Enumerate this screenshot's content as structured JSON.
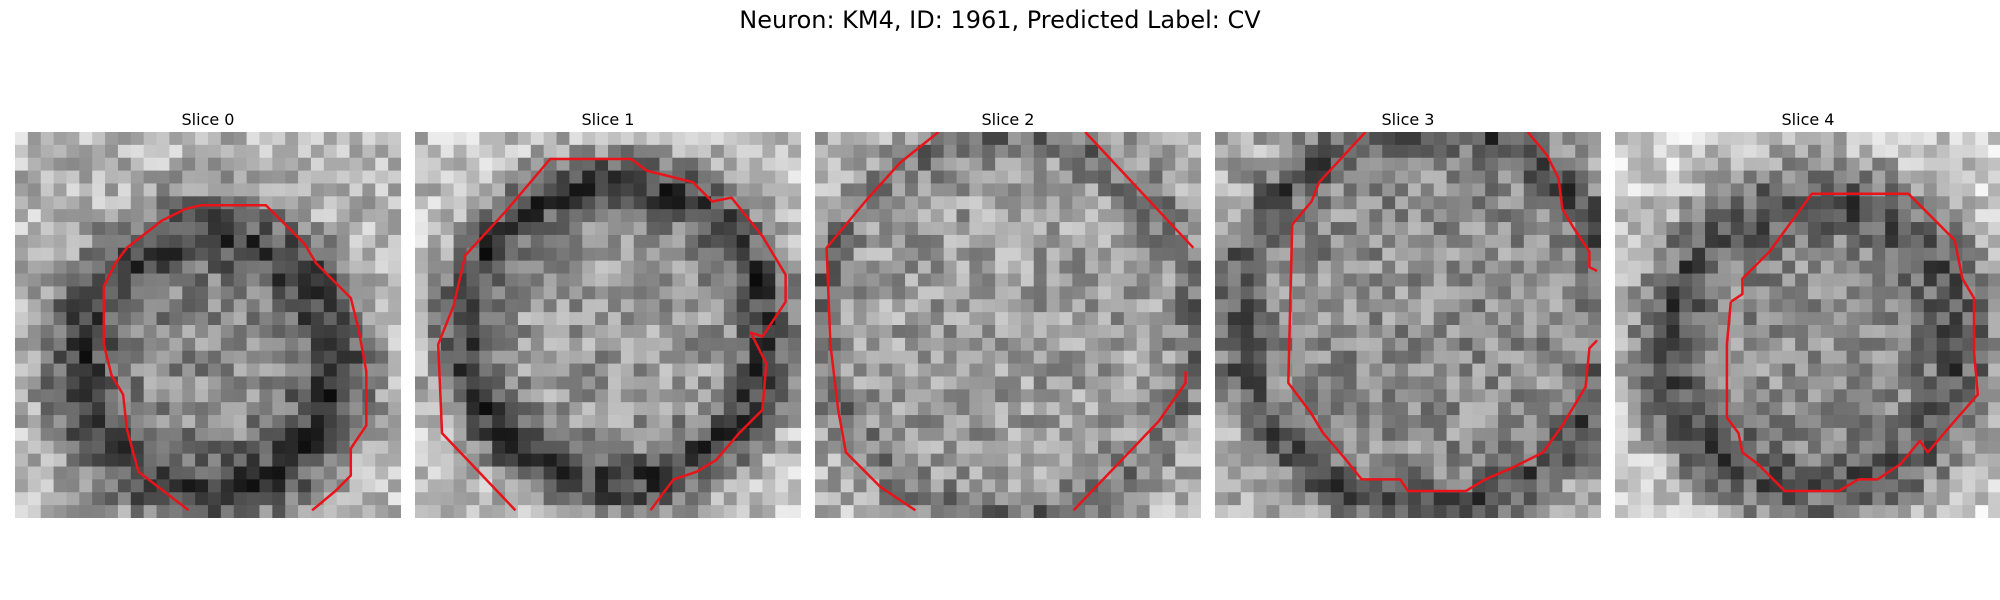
{
  "figure": {
    "title": "Neuron: KM4, ID: 1961, Predicted Label: CV"
  },
  "colors": {
    "contour": "#e8141a",
    "background": "#ffffff"
  },
  "panels": [
    {
      "title": "Slice 0",
      "grid": 30,
      "profile": {
        "center": [
          0.5,
          0.6
        ],
        "radius": 0.34,
        "ring_width": 0.1,
        "ring_darkness": 0.85,
        "inner": 0.55,
        "outer": 0.72
      },
      "contour": [
        [
          [
            0.45,
            0.98
          ],
          [
            0.32,
            0.88
          ],
          [
            0.29,
            0.77
          ],
          [
            0.28,
            0.68
          ],
          [
            0.25,
            0.63
          ],
          [
            0.23,
            0.55
          ],
          [
            0.23,
            0.4
          ],
          [
            0.26,
            0.34
          ],
          [
            0.29,
            0.3
          ],
          [
            0.38,
            0.23
          ],
          [
            0.44,
            0.2
          ],
          [
            0.48,
            0.19
          ],
          [
            0.65,
            0.19
          ],
          [
            0.75,
            0.29
          ],
          [
            0.78,
            0.34
          ],
          [
            0.87,
            0.43
          ],
          [
            0.89,
            0.51
          ],
          [
            0.91,
            0.62
          ],
          [
            0.91,
            0.76
          ],
          [
            0.87,
            0.82
          ],
          [
            0.87,
            0.89
          ],
          [
            0.83,
            0.93
          ],
          [
            0.77,
            0.98
          ]
        ]
      ]
    },
    {
      "title": "Slice 1",
      "grid": 30,
      "profile": {
        "center": [
          0.52,
          0.52
        ],
        "radius": 0.4,
        "ring_width": 0.08,
        "ring_darkness": 0.9,
        "inner": 0.6,
        "outer": 0.75
      },
      "contour": [
        [
          [
            0.26,
            0.98
          ],
          [
            0.07,
            0.78
          ],
          [
            0.06,
            0.55
          ],
          [
            0.1,
            0.45
          ],
          [
            0.13,
            0.32
          ],
          [
            0.24,
            0.2
          ],
          [
            0.35,
            0.07
          ],
          [
            0.56,
            0.07
          ],
          [
            0.6,
            0.1
          ],
          [
            0.72,
            0.13
          ],
          [
            0.77,
            0.18
          ],
          [
            0.82,
            0.17
          ],
          [
            0.9,
            0.27
          ],
          [
            0.96,
            0.37
          ],
          [
            0.96,
            0.44
          ],
          [
            0.9,
            0.53
          ],
          [
            0.87,
            0.52
          ],
          [
            0.91,
            0.6
          ],
          [
            0.9,
            0.72
          ],
          [
            0.84,
            0.78
          ],
          [
            0.78,
            0.85
          ],
          [
            0.73,
            0.88
          ],
          [
            0.67,
            0.9
          ],
          [
            0.64,
            0.94
          ],
          [
            0.61,
            0.98
          ]
        ]
      ]
    },
    {
      "title": "Slice 2",
      "grid": 30,
      "profile": {
        "center": [
          0.5,
          0.5
        ],
        "radius": 0.5,
        "ring_width": 0.06,
        "ring_darkness": 0.45,
        "inner": 0.62,
        "outer": 0.7
      },
      "contour": [
        [
          [
            0.26,
            0.98
          ],
          [
            0.17,
            0.92
          ],
          [
            0.08,
            0.83
          ],
          [
            0.06,
            0.72
          ],
          [
            0.04,
            0.55
          ],
          [
            0.03,
            0.3
          ],
          [
            0.13,
            0.18
          ],
          [
            0.22,
            0.08
          ],
          [
            0.32,
            0.0
          ]
        ],
        [
          [
            0.7,
            0.0
          ],
          [
            0.98,
            0.3
          ]
        ],
        [
          [
            0.67,
            0.98
          ],
          [
            0.89,
            0.75
          ],
          [
            0.96,
            0.65
          ],
          [
            0.96,
            0.62
          ]
        ]
      ]
    },
    {
      "title": "Slice 3",
      "grid": 30,
      "profile": {
        "center": [
          0.55,
          0.48
        ],
        "radius": 0.5,
        "ring_width": 0.06,
        "ring_darkness": 0.7,
        "inner": 0.55,
        "outer": 0.68
      },
      "contour": [
        [
          [
            0.39,
            0.0
          ],
          [
            0.27,
            0.13
          ],
          [
            0.25,
            0.18
          ],
          [
            0.2,
            0.24
          ],
          [
            0.19,
            0.65
          ],
          [
            0.25,
            0.73
          ],
          [
            0.28,
            0.78
          ],
          [
            0.34,
            0.85
          ],
          [
            0.38,
            0.9
          ],
          [
            0.48,
            0.9
          ],
          [
            0.5,
            0.93
          ],
          [
            0.65,
            0.93
          ],
          [
            0.7,
            0.9
          ],
          [
            0.77,
            0.87
          ],
          [
            0.85,
            0.83
          ],
          [
            0.9,
            0.76
          ],
          [
            0.96,
            0.66
          ],
          [
            0.97,
            0.56
          ],
          [
            0.99,
            0.54
          ]
        ],
        [
          [
            0.81,
            0.0
          ],
          [
            0.86,
            0.06
          ],
          [
            0.89,
            0.12
          ],
          [
            0.9,
            0.2
          ],
          [
            0.93,
            0.25
          ],
          [
            0.97,
            0.31
          ],
          [
            0.97,
            0.35
          ],
          [
            0.99,
            0.36
          ]
        ]
      ]
    },
    {
      "title": "Slice 4",
      "grid": 30,
      "profile": {
        "center": [
          0.52,
          0.55
        ],
        "radius": 0.4,
        "ring_width": 0.1,
        "ring_darkness": 0.7,
        "inner": 0.55,
        "outer": 0.8
      },
      "contour": [
        [
          [
            0.3,
            0.44
          ],
          [
            0.33,
            0.42
          ],
          [
            0.33,
            0.38
          ],
          [
            0.4,
            0.31
          ],
          [
            0.51,
            0.16
          ],
          [
            0.76,
            0.16
          ],
          [
            0.83,
            0.23
          ],
          [
            0.88,
            0.28
          ],
          [
            0.9,
            0.38
          ],
          [
            0.93,
            0.43
          ],
          [
            0.93,
            0.57
          ],
          [
            0.94,
            0.68
          ],
          [
            0.87,
            0.76
          ],
          [
            0.81,
            0.83
          ],
          [
            0.79,
            0.8
          ],
          [
            0.74,
            0.86
          ],
          [
            0.68,
            0.9
          ],
          [
            0.63,
            0.9
          ],
          [
            0.58,
            0.93
          ],
          [
            0.44,
            0.93
          ],
          [
            0.37,
            0.86
          ],
          [
            0.33,
            0.83
          ],
          [
            0.32,
            0.78
          ],
          [
            0.29,
            0.74
          ],
          [
            0.29,
            0.55
          ],
          [
            0.3,
            0.44
          ]
        ]
      ]
    }
  ]
}
